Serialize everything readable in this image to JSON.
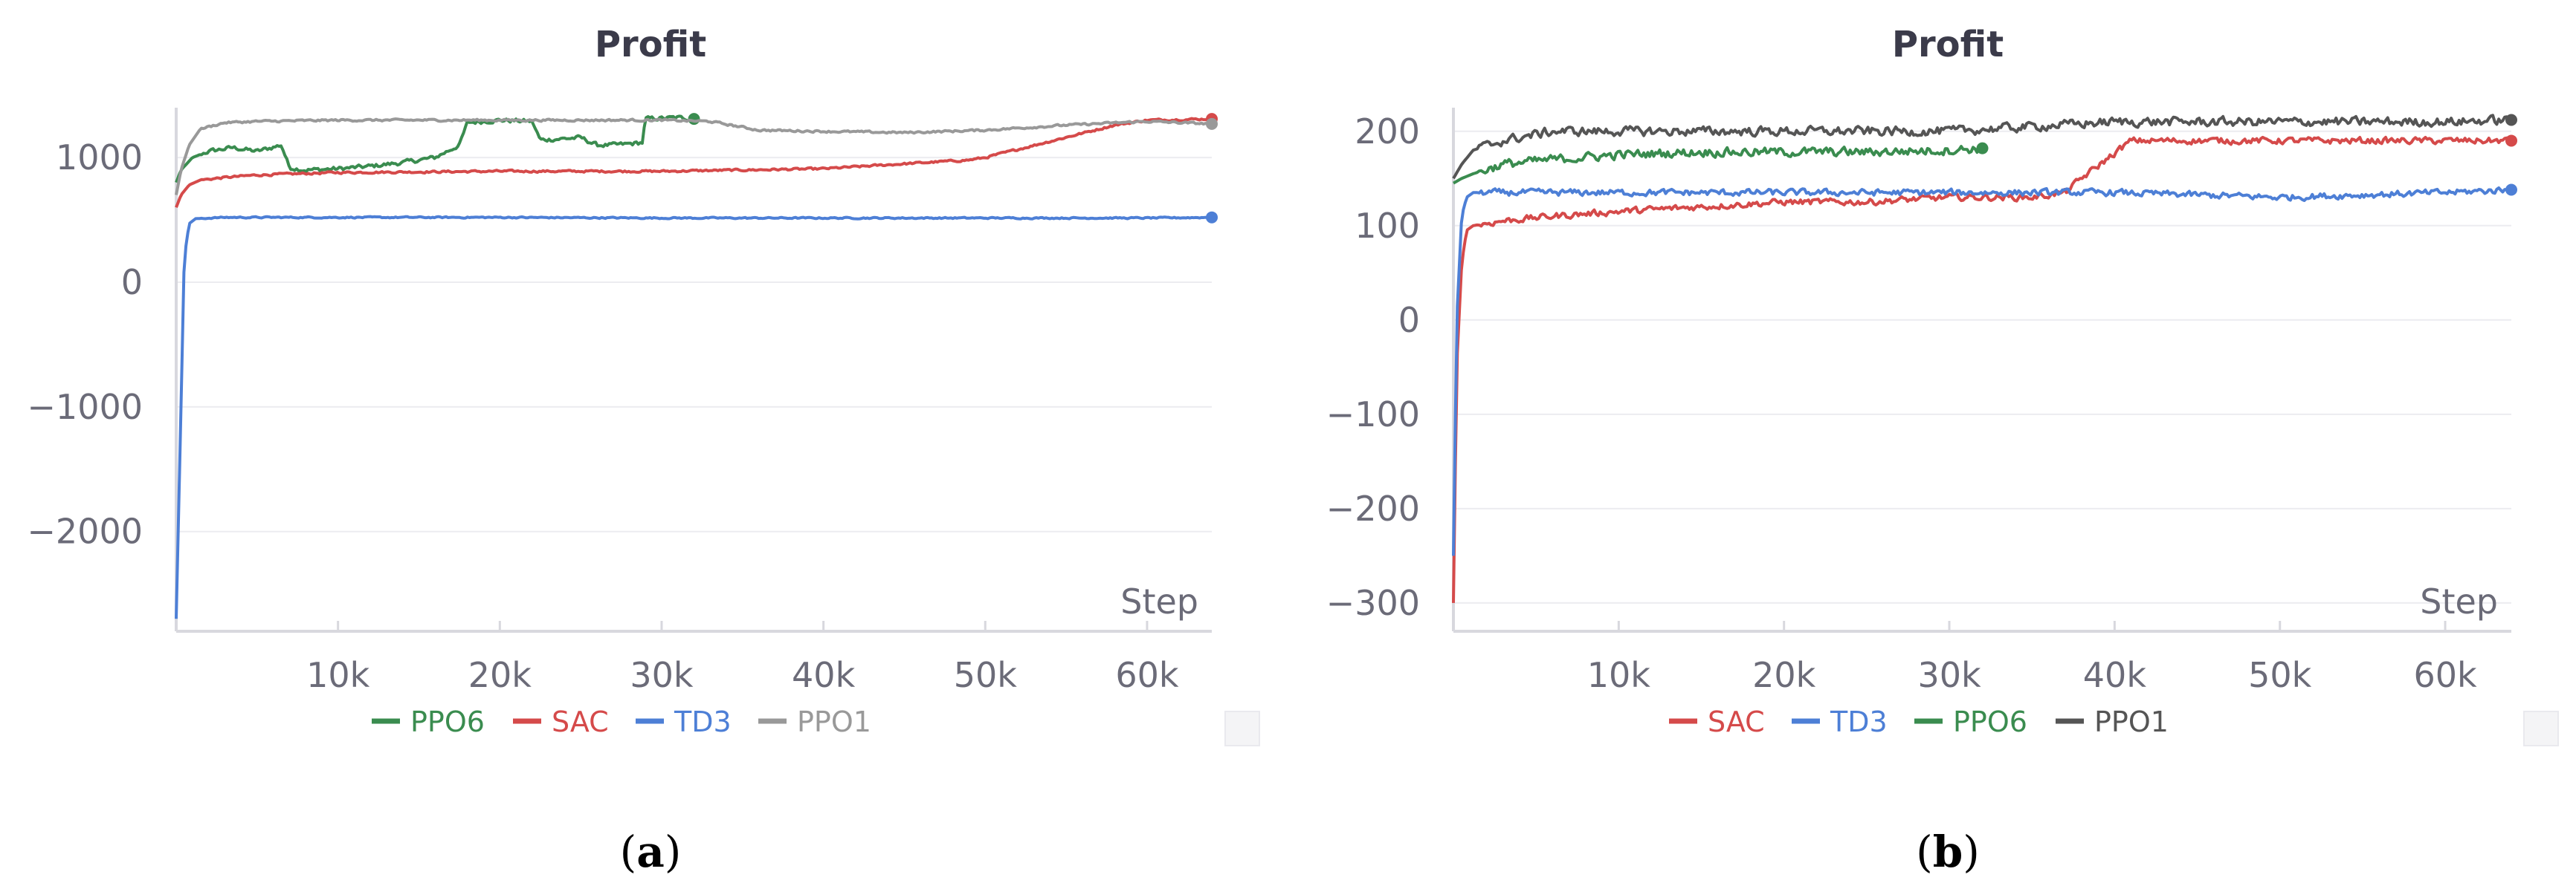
{
  "colors": {
    "green": "#3a8c4f",
    "red": "#d54a4a",
    "blue": "#4d7fd6",
    "gray_light": "#999999",
    "gray_dark": "#555555"
  },
  "panels": [
    {
      "caption": "(a)",
      "caption_letter": "a"
    },
    {
      "caption": "(b)",
      "caption_letter": "b"
    }
  ],
  "chart_data": [
    {
      "type": "line",
      "title": "Profit",
      "xlabel": "Step",
      "ylabel": "",
      "xlim": [
        0,
        64000
      ],
      "ylim": [
        -2800,
        1400
      ],
      "x_ticks": [
        10000,
        20000,
        30000,
        40000,
        50000,
        60000
      ],
      "x_tick_labels": [
        "10k",
        "20k",
        "30k",
        "40k",
        "50k",
        "60k"
      ],
      "y_ticks": [
        1000,
        0,
        -1000,
        -2000
      ],
      "y_tick_labels": [
        "1000",
        "0",
        "−1000",
        "−2000"
      ],
      "grid": true,
      "legend_position": "bottom",
      "legend": [
        "PPO6",
        "SAC",
        "TD3",
        "PPO1"
      ],
      "series": [
        {
          "name": "PPO6",
          "color": "#3a8c4f",
          "noise": 25,
          "x": [
            0,
            300,
            1000,
            2000,
            3500,
            5000,
            6500,
            7000,
            8000,
            10000,
            12000,
            14000,
            16000,
            17500,
            18000,
            20000,
            22000,
            22500,
            25000,
            26000,
            27000,
            28000,
            28800,
            29000,
            31000,
            32000
          ],
          "y": [
            800,
            900,
            1000,
            1050,
            1080,
            1050,
            1100,
            920,
            900,
            910,
            930,
            960,
            1000,
            1100,
            1280,
            1300,
            1290,
            1140,
            1160,
            1100,
            1100,
            1110,
            1120,
            1310,
            1320,
            1310
          ]
        },
        {
          "name": "SAC",
          "color": "#d54a4a",
          "noise": 12,
          "x": [
            0,
            300,
            800,
            1500,
            3000,
            5000,
            10000,
            20000,
            30000,
            40000,
            45000,
            49000,
            50000,
            58000,
            60000,
            64000
          ],
          "y": [
            600,
            700,
            780,
            820,
            840,
            860,
            880,
            890,
            890,
            910,
            950,
            980,
            1000,
            1260,
            1300,
            1310
          ]
        },
        {
          "name": "TD3",
          "color": "#4d7fd6",
          "noise": 8,
          "x": [
            0,
            300,
            500,
            800,
            1200,
            3000,
            10000,
            20000,
            30000,
            40000,
            50000,
            60000,
            64000
          ],
          "y": [
            -2700,
            -1000,
            200,
            470,
            510,
            520,
            520,
            520,
            515,
            515,
            515,
            515,
            520
          ]
        },
        {
          "name": "PPO1",
          "color": "#999999",
          "noise": 12,
          "x": [
            0,
            300,
            800,
            1500,
            3000,
            5000,
            10000,
            20000,
            30000,
            33000,
            36000,
            40000,
            45000,
            50000,
            55000,
            60000,
            64000
          ],
          "y": [
            700,
            900,
            1100,
            1230,
            1280,
            1290,
            1300,
            1300,
            1300,
            1290,
            1220,
            1210,
            1200,
            1220,
            1260,
            1290,
            1270
          ]
        }
      ]
    },
    {
      "type": "line",
      "title": "Profit",
      "xlabel": "Step",
      "ylabel": "",
      "xlim": [
        0,
        64000
      ],
      "ylim": [
        -330,
        225
      ],
      "x_ticks": [
        10000,
        20000,
        30000,
        40000,
        50000,
        60000
      ],
      "x_tick_labels": [
        "10k",
        "20k",
        "30k",
        "40k",
        "50k",
        "60k"
      ],
      "y_ticks": [
        200,
        100,
        0,
        -100,
        -200,
        -300
      ],
      "y_tick_labels": [
        "200",
        "100",
        "0",
        "−100",
        "−200",
        "−300"
      ],
      "grid": true,
      "legend_position": "bottom",
      "legend": [
        "SAC",
        "TD3",
        "PPO6",
        "PPO1"
      ],
      "series": [
        {
          "name": "SAC",
          "color": "#d54a4a",
          "noise": 5,
          "x": [
            0,
            200,
            500,
            800,
            1200,
            3000,
            6000,
            10000,
            15000,
            20000,
            25000,
            30000,
            35000,
            37000,
            38000,
            41000,
            45000,
            50000,
            55000,
            60000,
            64000
          ],
          "y": [
            -300,
            -50,
            60,
            95,
            100,
            105,
            110,
            115,
            120,
            125,
            125,
            130,
            130,
            135,
            150,
            190,
            190,
            190,
            190,
            190,
            190
          ]
        },
        {
          "name": "TD3",
          "color": "#4d7fd6",
          "noise": 5,
          "x": [
            0,
            200,
            500,
            800,
            1200,
            3000,
            10000,
            20000,
            30000,
            40000,
            50000,
            60000,
            64000
          ],
          "y": [
            -250,
            0,
            110,
            130,
            135,
            135,
            135,
            135,
            135,
            135,
            130,
            135,
            138
          ]
        },
        {
          "name": "PPO6",
          "color": "#3a8c4f",
          "noise": 7,
          "x": [
            0,
            500,
            1200,
            3000,
            6000,
            10000,
            15000,
            20000,
            25000,
            30000,
            32000
          ],
          "y": [
            145,
            150,
            155,
            165,
            170,
            175,
            178,
            178,
            178,
            180,
            182
          ]
        },
        {
          "name": "PPO1",
          "color": "#555555",
          "noise": 7,
          "x": [
            0,
            500,
            1200,
            3000,
            6000,
            10000,
            15000,
            20000,
            30000,
            35000,
            40000,
            45000,
            50000,
            55000,
            60000,
            64000
          ],
          "y": [
            150,
            165,
            180,
            190,
            200,
            200,
            200,
            200,
            200,
            205,
            210,
            210,
            210,
            210,
            210,
            212
          ]
        }
      ]
    }
  ]
}
